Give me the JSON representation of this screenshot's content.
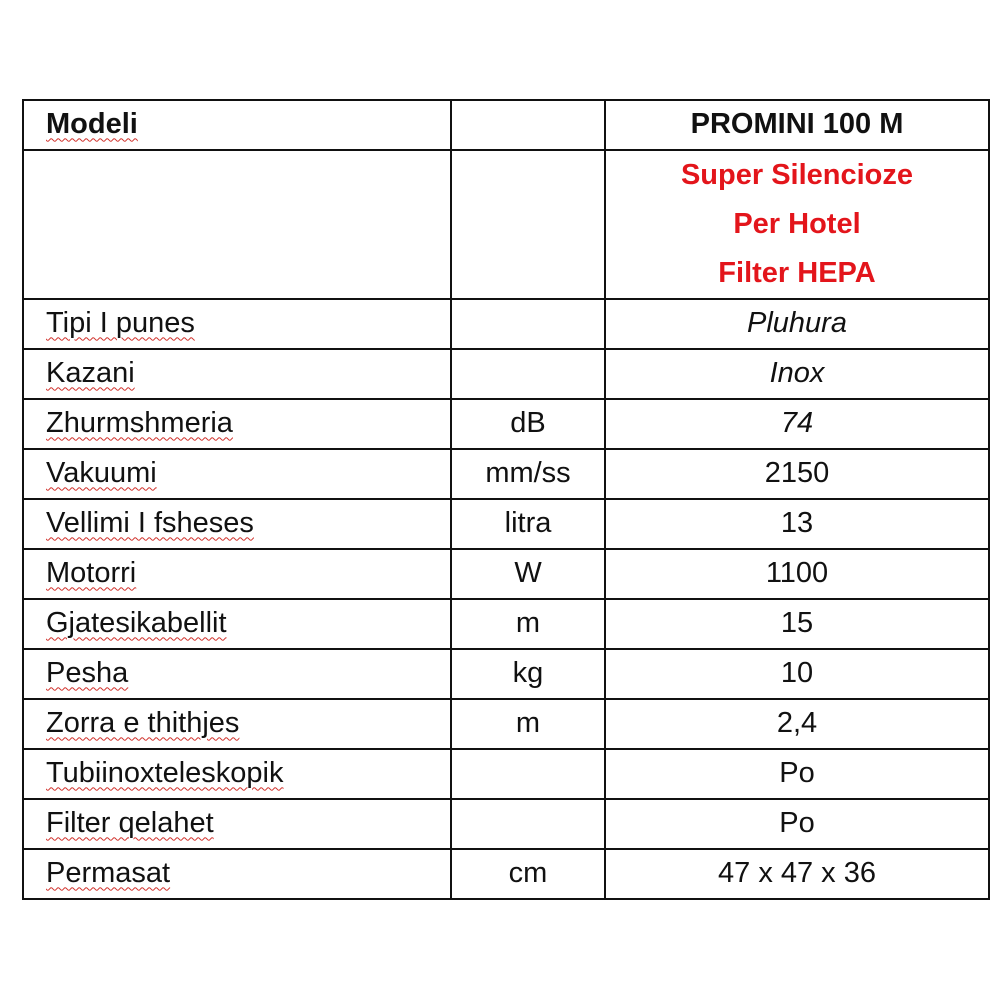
{
  "table": {
    "header": {
      "label": "Modeli",
      "unit": "",
      "value": "PROMINI 100 M"
    },
    "features": [
      "Super Silencioze",
      "Per Hotel",
      "Filter HEPA"
    ],
    "rows": [
      {
        "label": "Tipi I punes",
        "unit": "",
        "value": "Pluhura",
        "italic": true
      },
      {
        "label": "Kazani",
        "unit": "",
        "value": "Inox",
        "italic": true
      },
      {
        "label": "Zhurmshmeria",
        "unit": "dB",
        "value": "74",
        "italic": true
      },
      {
        "label": "Vakuumi",
        "unit": "mm/ss",
        "value": "2150"
      },
      {
        "label": "Vellimi I fsheses",
        "unit": "litra",
        "value": "13"
      },
      {
        "label": "Motorri",
        "unit": "W",
        "value": "1100"
      },
      {
        "label": "Gjatesikabellit",
        "unit": "m",
        "value": "15"
      },
      {
        "label": "Pesha",
        "unit": "kg",
        "value": "10"
      },
      {
        "label": "Zorra e thithjes",
        "unit": "m",
        "value": "2,4"
      },
      {
        "label": "Tubiinoxteleskopik",
        "unit": "",
        "value": "Po"
      },
      {
        "label": "Filter qelahet",
        "unit": "",
        "value": "Po"
      },
      {
        "label": "Permasat",
        "unit": "cm",
        "value": "47 x 47 x 36"
      }
    ]
  },
  "colors": {
    "feature_text": "#e3151b",
    "border": "#111111"
  }
}
